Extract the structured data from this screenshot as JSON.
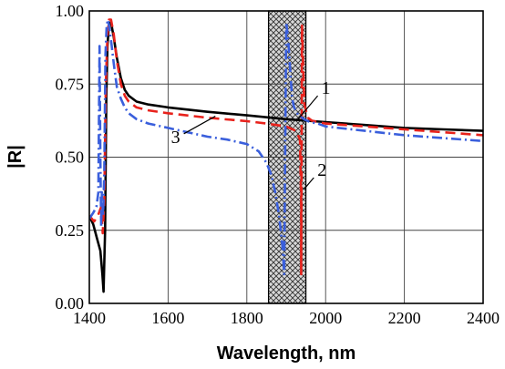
{
  "chart_data": {
    "type": "line",
    "xlabel": "Wavelength,  nm",
    "ylabel": "|R|",
    "xlim": [
      1400,
      2400
    ],
    "ylim": [
      0.0,
      1.0
    ],
    "xticks": [
      1400,
      1600,
      1800,
      2000,
      2200,
      2400
    ],
    "xtick_labels": [
      "1400",
      "1600",
      "1800",
      "2000",
      "2200",
      "2400"
    ],
    "yticks": [
      0.0,
      0.25,
      0.5,
      0.75,
      1.0
    ],
    "ytick_labels": [
      "0.00",
      "0.25",
      "0.50",
      "0.75",
      "1.00"
    ],
    "grid": true,
    "shaded_region": {
      "x": [
        1855,
        1950
      ],
      "pattern": "crosshatch"
    },
    "series": [
      {
        "name": "1",
        "color": "#000000",
        "style": "solid",
        "x": [
          1400,
          1410,
          1420,
          1428,
          1433,
          1436,
          1440,
          1443,
          1446,
          1450,
          1455,
          1462,
          1470,
          1480,
          1490,
          1500,
          1520,
          1550,
          1600,
          1700,
          1800,
          1900,
          2000,
          2100,
          2200,
          2300,
          2400
        ],
        "y": [
          0.3,
          0.27,
          0.22,
          0.18,
          0.1,
          0.04,
          0.25,
          0.7,
          0.88,
          0.96,
          0.96,
          0.91,
          0.84,
          0.77,
          0.73,
          0.71,
          0.69,
          0.68,
          0.67,
          0.655,
          0.643,
          0.63,
          0.62,
          0.61,
          0.6,
          0.595,
          0.59
        ]
      },
      {
        "name": "2",
        "color": "#e8221c",
        "style": "dashed",
        "x": [
          1400,
          1412,
          1422,
          1430,
          1434,
          1438,
          1442,
          1446,
          1450,
          1455,
          1462,
          1470,
          1480,
          1490,
          1500,
          1520,
          1550,
          1600,
          1700,
          1800,
          1850,
          1900,
          1925,
          1935,
          1938,
          1938,
          1940,
          1943,
          1946,
          1955,
          1965,
          1980,
          2000,
          2100,
          2200,
          2300,
          2400
        ],
        "y": [
          0.3,
          0.28,
          0.3,
          0.33,
          0.24,
          0.35,
          0.75,
          0.92,
          0.97,
          0.97,
          0.92,
          0.83,
          0.75,
          0.71,
          0.69,
          0.67,
          0.66,
          0.65,
          0.635,
          0.623,
          0.615,
          0.605,
          0.59,
          0.56,
          0.35,
          0.1,
          0.95,
          0.8,
          0.68,
          0.635,
          0.625,
          0.62,
          0.615,
          0.605,
          0.595,
          0.585,
          0.575
        ]
      },
      {
        "name": "3",
        "color": "#3a5fdc",
        "style": "dashdot",
        "x": [
          1400,
          1410,
          1418,
          1423,
          1426,
          1428,
          1430,
          1432,
          1435,
          1438,
          1441,
          1444,
          1447,
          1450,
          1455,
          1462,
          1470,
          1480,
          1490,
          1500,
          1520,
          1550,
          1600,
          1650,
          1700,
          1750,
          1800,
          1830,
          1850,
          1862,
          1872,
          1882,
          1890,
          1895,
          1900,
          1905,
          1910,
          1915,
          1920,
          1930,
          1945,
          1960,
          1980,
          2000,
          2100,
          2200,
          2300,
          2400
        ],
        "y": [
          0.29,
          0.31,
          0.33,
          0.38,
          0.88,
          0.5,
          0.26,
          0.38,
          0.3,
          0.45,
          0.85,
          0.95,
          0.97,
          0.95,
          0.9,
          0.82,
          0.74,
          0.7,
          0.67,
          0.65,
          0.63,
          0.615,
          0.6,
          0.585,
          0.57,
          0.56,
          0.545,
          0.52,
          0.48,
          0.44,
          0.38,
          0.3,
          0.2,
          0.1,
          0.96,
          0.9,
          0.8,
          0.7,
          0.67,
          0.645,
          0.63,
          0.62,
          0.615,
          0.605,
          0.59,
          0.575,
          0.565,
          0.555
        ]
      }
    ],
    "annotations": [
      {
        "text": "1",
        "x": 1980,
        "y": 0.71,
        "pointer_to": [
          1930,
          0.63
        ]
      },
      {
        "text": "2",
        "x": 1970,
        "y": 0.43,
        "pointer_to": [
          1945,
          0.39
        ]
      },
      {
        "text": "3",
        "x": 1640,
        "y": 0.58,
        "pointer_to": [
          1720,
          0.64
        ]
      }
    ]
  }
}
